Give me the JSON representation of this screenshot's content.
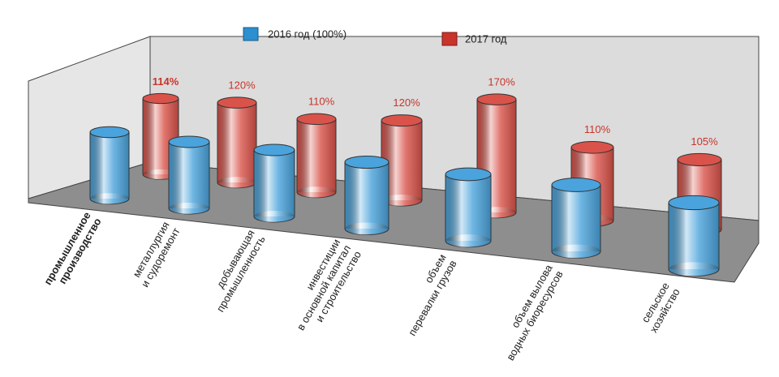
{
  "chart_data": {
    "type": "cylinder",
    "categories": [
      [
        "промышленное",
        "производство"
      ],
      [
        "металлургия",
        "и судоремонт"
      ],
      [
        "добывающая",
        "промышленность"
      ],
      [
        "инвестиции",
        "в основной капитал",
        "и строительство"
      ],
      [
        "объем",
        "перевалки грузов"
      ],
      [
        "объем вылова",
        "водных биоресурсов"
      ],
      [
        "сельское",
        "хозяйство"
      ]
    ],
    "series": [
      {
        "name": "2016 год (100%)",
        "color": "#4aa3dc",
        "values": [
          100,
          100,
          100,
          100,
          100,
          100,
          100
        ]
      },
      {
        "name": "2017 год",
        "color": "#d9534a",
        "values": [
          114,
          120,
          110,
          120,
          170,
          110,
          105
        ],
        "value_labels": [
          "114%",
          "120%",
          "110%",
          "120%",
          "170%",
          "110%",
          "105%"
        ]
      }
    ]
  }
}
